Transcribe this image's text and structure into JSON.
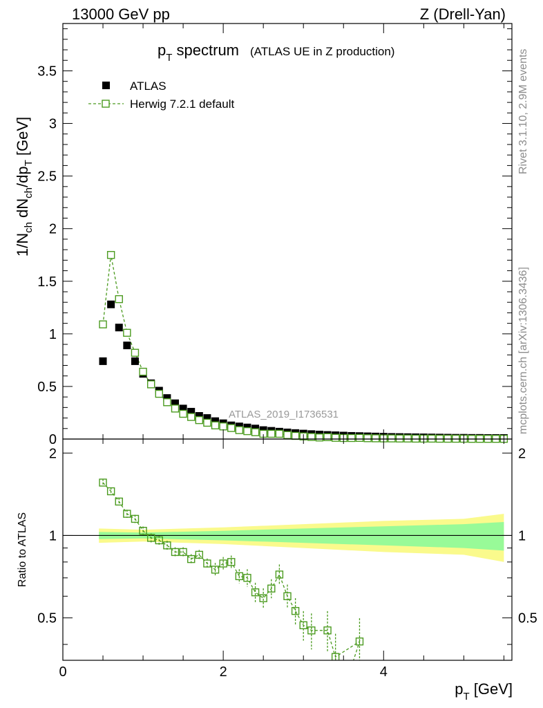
{
  "header": {
    "left": "13000 GeV pp",
    "right": "Z (Drell-Yan)"
  },
  "side_labels": {
    "rivet": "Rivet 3.1.10,  2.9M events",
    "mcplots": "mcplots.cern.ch [arXiv:1306.3436]"
  },
  "chart_data": [
    {
      "panel": "main",
      "type": "scatter",
      "title_main": "p",
      "title_sub": "T",
      "title_rest": " spectrum",
      "title_suffix": "(ATLAS UE in Z production)",
      "watermark": "ATLAS_2019_I1736531",
      "ylabel": "1/N_ch dN_ch/dp_T [GeV]",
      "xlim": [
        0,
        5.6
      ],
      "ylim": [
        0,
        3.95
      ],
      "yticks": [
        0,
        0.5,
        1,
        1.5,
        2,
        2.5,
        3,
        3.5
      ],
      "ytick_labels": [
        "0",
        "0.5",
        "1",
        "1.5",
        "2",
        "2.5",
        "3",
        "3.5"
      ],
      "legend": {
        "position": "top-left",
        "entries": [
          "ATLAS",
          "Herwig 7.2.1 default"
        ]
      },
      "series": [
        {
          "name": "ATLAS",
          "marker": "filled-square",
          "color": "#000000",
          "x": [
            0.5,
            0.6,
            0.7,
            0.8,
            0.9,
            1.0,
            1.1,
            1.2,
            1.3,
            1.4,
            1.5,
            1.6,
            1.7,
            1.8,
            1.9,
            2.0,
            2.1,
            2.2,
            2.3,
            2.4,
            2.5,
            2.6,
            2.7,
            2.8,
            2.9,
            3.0,
            3.1,
            3.2,
            3.3,
            3.4,
            3.5,
            3.6,
            3.7,
            3.8,
            3.9,
            4.0,
            4.1,
            4.2,
            4.3,
            4.4,
            4.5,
            4.6,
            4.7,
            4.8,
            4.9,
            5.0,
            5.1,
            5.2,
            5.3,
            5.4,
            5.5
          ],
          "y": [
            0.74,
            1.28,
            1.06,
            0.89,
            0.74,
            0.62,
            0.53,
            0.46,
            0.39,
            0.34,
            0.29,
            0.26,
            0.22,
            0.2,
            0.17,
            0.15,
            0.13,
            0.12,
            0.11,
            0.1,
            0.085,
            0.078,
            0.07,
            0.063,
            0.057,
            0.052,
            0.047,
            0.043,
            0.039,
            0.036,
            0.033,
            0.03,
            0.028,
            0.026,
            0.024,
            0.022,
            0.02,
            0.019,
            0.018,
            0.017,
            0.016,
            0.015,
            0.014,
            0.013,
            0.012,
            0.012,
            0.011,
            0.011,
            0.01,
            0.01,
            0.01
          ]
        },
        {
          "name": "Herwig 7.2.1 default",
          "marker": "open-square-dashed-line",
          "color": "#4a9a1e",
          "x": [
            0.5,
            0.6,
            0.7,
            0.8,
            0.9,
            1.0,
            1.1,
            1.2,
            1.3,
            1.4,
            1.5,
            1.6,
            1.7,
            1.8,
            1.9,
            2.0,
            2.1,
            2.2,
            2.3,
            2.4,
            2.5,
            2.6,
            2.7,
            2.8,
            2.9,
            3.0,
            3.1,
            3.2,
            3.3,
            3.4,
            3.5,
            3.6,
            3.7,
            3.8,
            3.9,
            4.0,
            4.1,
            4.2,
            4.3,
            4.4,
            4.5,
            4.6,
            4.7,
            4.8,
            4.9,
            5.0,
            5.1,
            5.2,
            5.3,
            5.4,
            5.5
          ],
          "y": [
            1.09,
            1.75,
            1.33,
            1.01,
            0.82,
            0.64,
            0.52,
            0.43,
            0.35,
            0.29,
            0.24,
            0.21,
            0.18,
            0.155,
            0.13,
            0.12,
            0.105,
            0.085,
            0.075,
            0.065,
            0.05,
            0.05,
            0.05,
            0.038,
            0.03,
            0.025,
            0.02,
            0.015,
            0.018,
            0.012,
            0.01,
            0.01,
            0.011,
            0.008,
            0.007,
            0.006,
            0.006,
            0.005,
            0.005,
            0.004,
            0.004,
            0.004,
            0.003,
            0.003,
            0.003,
            0.003,
            0.002,
            0.002,
            0.002,
            0.002,
            0.002
          ]
        }
      ]
    },
    {
      "panel": "ratio",
      "type": "scatter",
      "ylabel": "Ratio to ATLAS",
      "xlabel": "p_T [GeV]",
      "xlabel_main": "p",
      "xlabel_sub": "T",
      "xlabel_rest": " [GeV]",
      "xlim": [
        0,
        5.6
      ],
      "ylim": [
        0.35,
        2.25
      ],
      "xticks": [
        0,
        2,
        4
      ],
      "xtick_labels": [
        "0",
        "2",
        "4"
      ],
      "yticks": [
        0.5,
        1,
        2
      ],
      "ytick_labels": [
        "0.5",
        "1",
        "2"
      ],
      "reference_line": 1,
      "uncertainty_band": {
        "x": [
          0.45,
          1.0,
          2.0,
          3.0,
          4.0,
          5.0,
          5.5
        ],
        "inner_halfwidth": [
          0.03,
          0.025,
          0.04,
          0.06,
          0.08,
          0.1,
          0.12
        ],
        "outer_halfwidth": [
          0.06,
          0.05,
          0.07,
          0.1,
          0.13,
          0.15,
          0.2
        ],
        "inner_color": "#98fa98",
        "outer_color": "#fafa8c"
      },
      "series": [
        {
          "name": "Herwig 7.2.1 default / ATLAS",
          "color": "#4a9a1e",
          "x": [
            0.5,
            0.6,
            0.7,
            0.8,
            0.9,
            1.0,
            1.1,
            1.2,
            1.3,
            1.4,
            1.5,
            1.6,
            1.7,
            1.8,
            1.9,
            2.0,
            2.1,
            2.2,
            2.3,
            2.4,
            2.5,
            2.6,
            2.7,
            2.8,
            2.9,
            3.0,
            3.1,
            3.3,
            3.4,
            3.7
          ],
          "y": [
            1.56,
            1.45,
            1.33,
            1.2,
            1.15,
            1.04,
            0.98,
            0.96,
            0.92,
            0.87,
            0.87,
            0.82,
            0.85,
            0.79,
            0.75,
            0.79,
            0.8,
            0.71,
            0.7,
            0.62,
            0.59,
            0.64,
            0.72,
            0.6,
            0.53,
            0.47,
            0.45,
            0.45,
            0.36,
            0.41
          ],
          "err": [
            0.02,
            0.02,
            0.02,
            0.02,
            0.02,
            0.02,
            0.02,
            0.02,
            0.02,
            0.02,
            0.02,
            0.02,
            0.02,
            0.02,
            0.03,
            0.03,
            0.03,
            0.03,
            0.04,
            0.04,
            0.04,
            0.04,
            0.05,
            0.05,
            0.05,
            0.05,
            0.06,
            0.07,
            0.07,
            0.08
          ]
        }
      ]
    }
  ]
}
